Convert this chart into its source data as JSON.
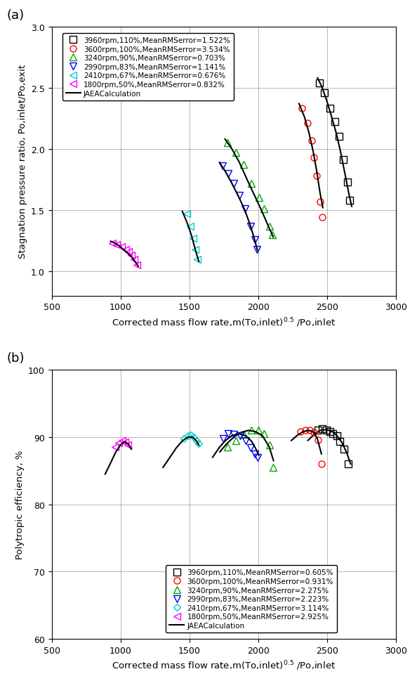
{
  "panel_a": {
    "panel_label": "(a)",
    "ylabel": "Stagnation pressure ratio, Po,inlet/Po,exit",
    "xlabel": "Corrected mass flow rate,m(To,inlet)$^{0.5}$ /Po,inlet",
    "xlim": [
      500,
      3000
    ],
    "ylim": [
      0.8,
      3.0
    ],
    "yticks": [
      1.0,
      1.5,
      2.0,
      2.5,
      3.0
    ],
    "xticks": [
      500,
      1000,
      1500,
      2000,
      2500,
      3000
    ],
    "series": [
      {
        "label": "3960rpm,110%,MeanRMSerror=1.522%",
        "color": "#000000",
        "marker": "s",
        "x_data": [
          2445,
          2480,
          2520,
          2555,
          2585,
          2615,
          2645,
          2665
        ],
        "y_data": [
          2.54,
          2.46,
          2.33,
          2.22,
          2.1,
          1.91,
          1.73,
          1.58
        ],
        "x_calc": [
          2430,
          2460,
          2495,
          2530,
          2568,
          2600,
          2630,
          2658,
          2678
        ],
        "y_calc": [
          2.58,
          2.51,
          2.4,
          2.27,
          2.12,
          1.96,
          1.79,
          1.63,
          1.53
        ]
      },
      {
        "label": "3600rpm,100%,MeanRMSerror=3.534%",
        "color": "#ff0000",
        "marker": "o",
        "x_data": [
          2315,
          2355,
          2385,
          2405,
          2425,
          2450,
          2465
        ],
        "y_data": [
          2.33,
          2.21,
          2.07,
          1.93,
          1.78,
          1.57,
          1.44
        ],
        "x_calc": [
          2295,
          2335,
          2368,
          2398,
          2422,
          2448,
          2468
        ],
        "y_calc": [
          2.37,
          2.26,
          2.13,
          1.98,
          1.83,
          1.64,
          1.52
        ]
      },
      {
        "label": "3240rpm,90%,MeanRMSerror=0.703%",
        "color": "#00aa00",
        "marker": "^",
        "x_data": [
          1775,
          1838,
          1893,
          1950,
          2003,
          2042,
          2082,
          2102
        ],
        "y_data": [
          2.05,
          1.97,
          1.87,
          1.72,
          1.6,
          1.51,
          1.37,
          1.3
        ],
        "x_calc": [
          1758,
          1808,
          1862,
          1918,
          1972,
          2022,
          2072,
          2108
        ],
        "y_calc": [
          2.08,
          2.0,
          1.89,
          1.75,
          1.62,
          1.5,
          1.37,
          1.28
        ]
      },
      {
        "label": "2990rpm,83%,MeanRMSerror=1.141%",
        "color": "#0000ff",
        "marker": "v",
        "x_data": [
          1742,
          1782,
          1823,
          1863,
          1903,
          1942,
          1972,
          1990
        ],
        "y_data": [
          1.86,
          1.8,
          1.72,
          1.62,
          1.51,
          1.37,
          1.26,
          1.18
        ],
        "x_calc": [
          1718,
          1758,
          1802,
          1848,
          1898,
          1940,
          1970,
          1993
        ],
        "y_calc": [
          1.89,
          1.82,
          1.73,
          1.63,
          1.51,
          1.38,
          1.27,
          1.17
        ]
      },
      {
        "label": "2410rpm,67%,MeanRMSerror=0.676%",
        "color": "#00cccc",
        "marker": "<",
        "x_data": [
          1478,
          1508,
          1527,
          1542,
          1558
        ],
        "y_data": [
          1.47,
          1.37,
          1.27,
          1.18,
          1.1
        ],
        "x_calc": [
          1448,
          1485,
          1515,
          1537,
          1554,
          1568
        ],
        "y_calc": [
          1.49,
          1.39,
          1.29,
          1.2,
          1.13,
          1.08
        ]
      },
      {
        "label": "1800rpm,50%,MeanRMSerror=0.832%",
        "color": "#ff00ff",
        "marker": "1",
        "x_data": [
          938,
          972,
          1005,
          1035,
          1058,
          1078,
          1098,
          1118
        ],
        "y_data": [
          1.23,
          1.22,
          1.2,
          1.18,
          1.16,
          1.13,
          1.1,
          1.05
        ],
        "x_calc": [
          928,
          958,
          988,
          1018,
          1048,
          1078,
          1105,
          1128
        ],
        "y_calc": [
          1.245,
          1.23,
          1.21,
          1.18,
          1.15,
          1.12,
          1.08,
          1.04
        ]
      }
    ]
  },
  "panel_b": {
    "panel_label": "(b)",
    "ylabel": "Polytropic efficiency, %",
    "xlabel": "Corrected mass flow rate,m(To,inlet)$^{0.5}$ /Po,inlet",
    "xlim": [
      500,
      3000
    ],
    "ylim": [
      60,
      100
    ],
    "yticks": [
      60,
      70,
      80,
      90,
      100
    ],
    "xticks": [
      500,
      1000,
      1500,
      2000,
      2500,
      3000
    ],
    "series": [
      {
        "label": "3960rpm,110%,MeanRMSerror=0.605%",
        "color": "#000000",
        "marker": "s",
        "x_data": [
          2432,
          2465,
          2493,
          2520,
          2542,
          2570,
          2592,
          2622,
          2652
        ],
        "y_data": [
          91.0,
          91.2,
          91.0,
          90.8,
          90.5,
          90.2,
          89.4,
          88.2,
          86.0
        ],
        "x_calc": [
          2360,
          2410,
          2450,
          2485,
          2515,
          2545,
          2575,
          2610,
          2645,
          2670
        ],
        "y_calc": [
          89.5,
          90.5,
          91.0,
          91.1,
          91.0,
          90.7,
          90.1,
          89.1,
          87.5,
          86.0
        ]
      },
      {
        "label": "3600rpm,100%,MeanRMSerror=0.931%",
        "color": "#ff0000",
        "marker": "o",
        "x_data": [
          2305,
          2342,
          2372,
          2402,
          2432,
          2458
        ],
        "y_data": [
          90.8,
          91.0,
          91.0,
          90.7,
          89.6,
          86.0
        ],
        "x_calc": [
          2240,
          2285,
          2325,
          2365,
          2398,
          2428,
          2458
        ],
        "y_calc": [
          89.5,
          90.3,
          90.8,
          91.0,
          90.8,
          89.8,
          87.5
        ]
      },
      {
        "label": "3240rpm,90%,MeanRMSerror=2.275%",
        "color": "#00aa00",
        "marker": "^",
        "x_data": [
          1778,
          1838,
          1893,
          1948,
          2000,
          2042,
          2082,
          2108
        ],
        "y_data": [
          88.5,
          89.5,
          90.4,
          91.0,
          91.0,
          90.5,
          88.8,
          85.5
        ],
        "x_calc": [
          1720,
          1770,
          1822,
          1875,
          1928,
          1980,
          2030,
          2080,
          2110
        ],
        "y_calc": [
          87.8,
          89.0,
          90.0,
          90.7,
          91.0,
          90.8,
          90.2,
          88.5,
          86.5
        ]
      },
      {
        "label": "2990rpm,83%,MeanRMSerror=2.223%",
        "color": "#0000ff",
        "marker": "v",
        "x_data": [
          1743,
          1780,
          1822,
          1868,
          1910,
          1945,
          1975,
          1995
        ],
        "y_data": [
          89.8,
          90.5,
          90.4,
          90.2,
          89.5,
          88.4,
          87.5,
          87.0
        ],
        "x_calc": [
          1668,
          1718,
          1762,
          1808,
          1858,
          1908,
          1950,
          1983,
          2003
        ],
        "y_calc": [
          87.0,
          88.5,
          89.5,
          90.2,
          90.5,
          90.2,
          89.4,
          88.2,
          87.3
        ]
      },
      {
        "label": "2410rpm,67%,MeanRMSerror=3.114%",
        "color": "#00cccc",
        "marker": "D",
        "x_data": [
          1458,
          1488,
          1510,
          1530,
          1550,
          1565
        ],
        "y_data": [
          89.8,
          90.2,
          90.3,
          90.0,
          89.5,
          89.0
        ],
        "x_calc": [
          1308,
          1358,
          1408,
          1452,
          1490,
          1520,
          1548,
          1568
        ],
        "y_calc": [
          85.5,
          87.0,
          88.5,
          89.5,
          90.0,
          90.0,
          89.5,
          88.8
        ]
      },
      {
        "label": "1800rpm,50%,MeanRMSerror=2.925%",
        "color": "#ff00ff",
        "marker": "1",
        "x_data": [
          958,
          988,
          1010,
          1030,
          1050
        ],
        "y_data": [
          88.5,
          89.2,
          89.5,
          89.3,
          88.8
        ],
        "x_calc": [
          888,
          928,
          965,
          998,
          1028,
          1055,
          1078
        ],
        "y_calc": [
          84.5,
          86.2,
          87.8,
          88.8,
          89.3,
          89.0,
          88.2
        ]
      }
    ]
  }
}
